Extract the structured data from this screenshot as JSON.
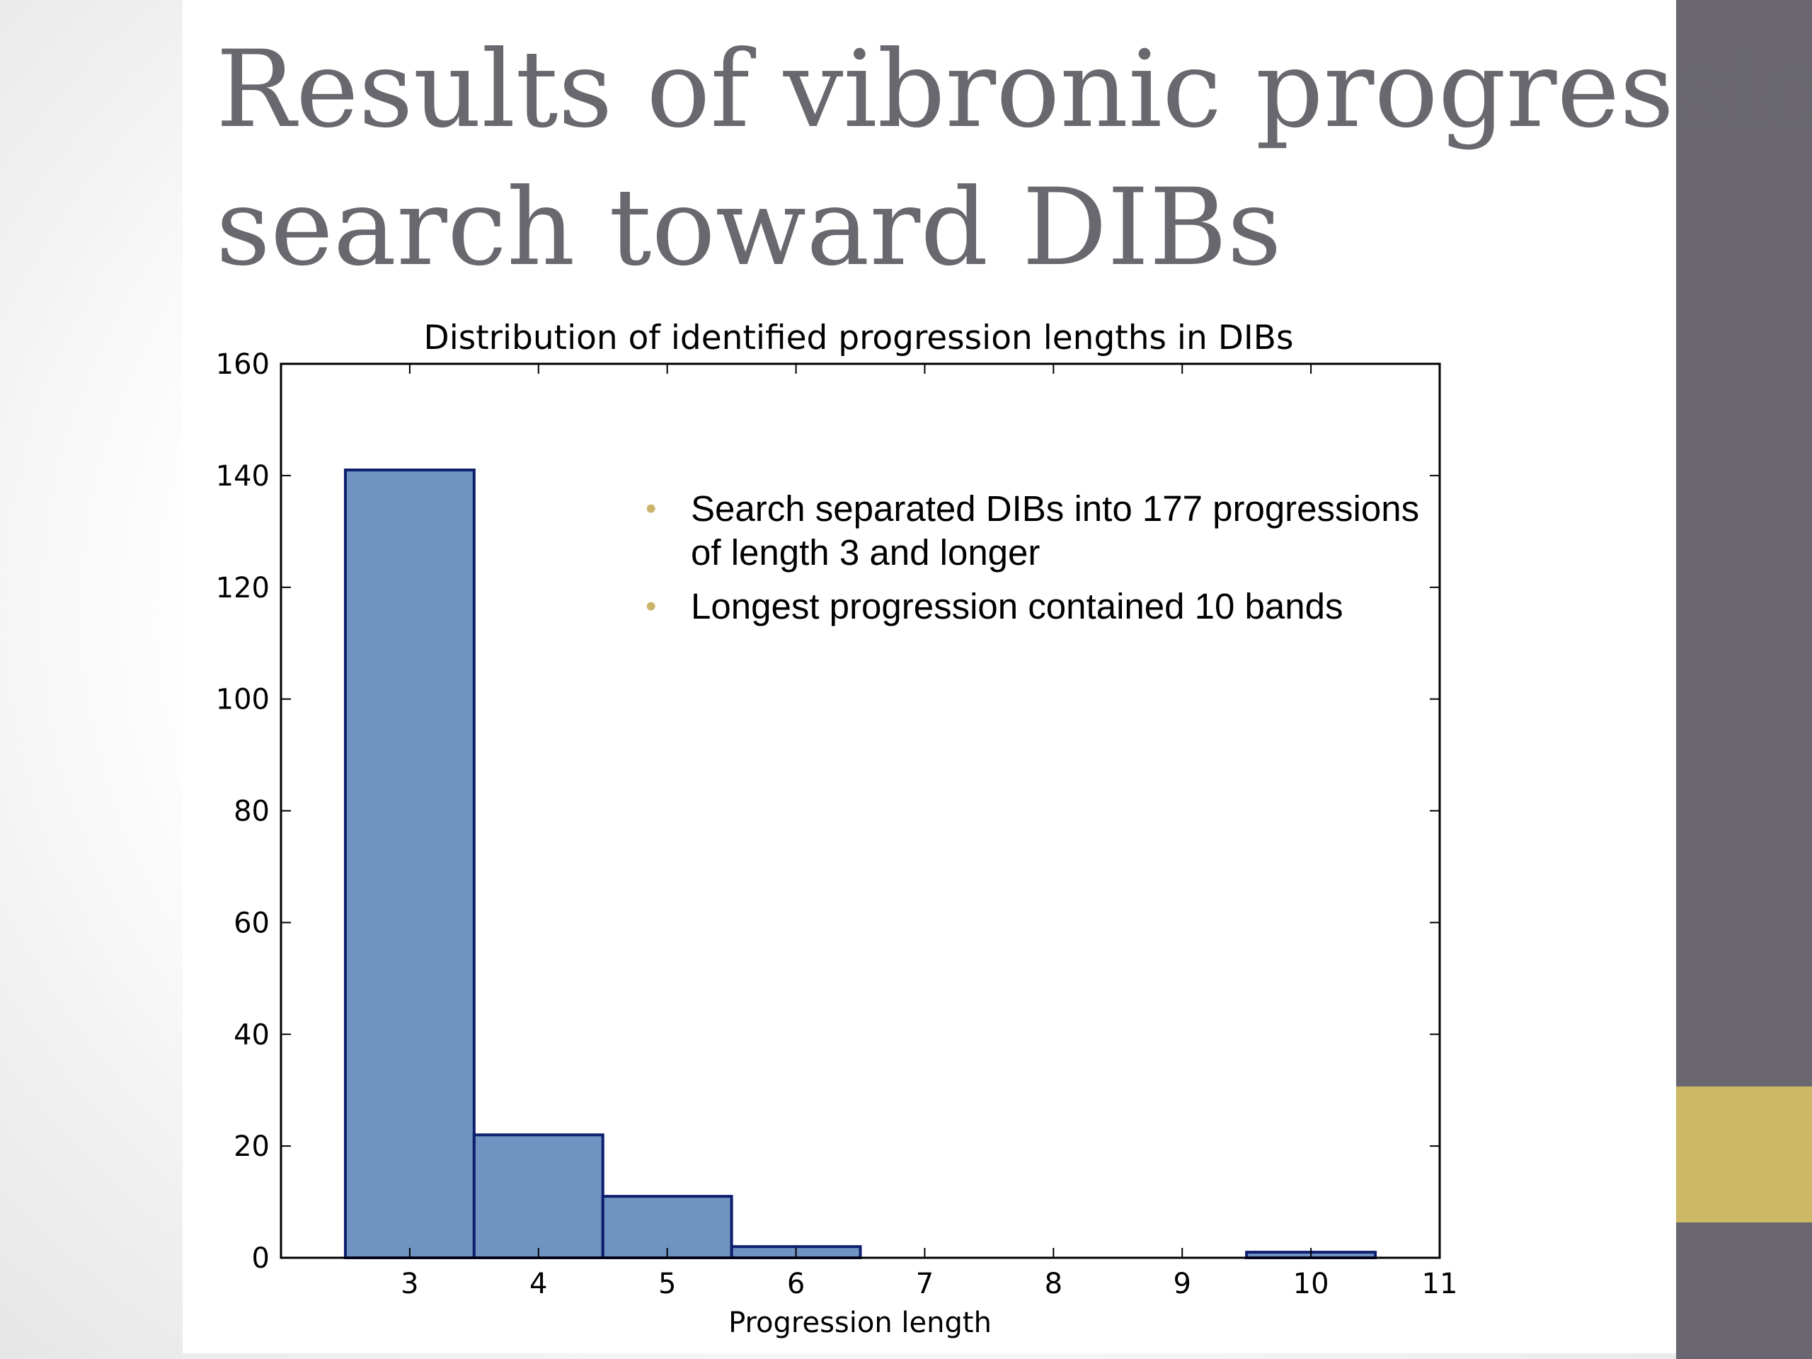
{
  "slide": {
    "title_lines": [
      "Results of vibronic progression",
      "search toward DIBs"
    ],
    "accent_colors": {
      "sidebar": "#6a6770",
      "highlight": "#cdb866",
      "bullet": "#c9b46a"
    },
    "bullets": [
      "Search separated DIBs into 177 progressions of length 3 and longer",
      "Longest progression contained 10 bands"
    ]
  },
  "chart_data": {
    "type": "bar",
    "title": "Distribution of identified progression lengths in DIBs",
    "xlabel": "Progression length",
    "ylabel": "",
    "categories": [
      3,
      4,
      5,
      6,
      7,
      8,
      9,
      10
    ],
    "values": [
      141,
      22,
      11,
      2,
      0,
      0,
      0,
      1
    ],
    "bar_width": 1,
    "xlim": [
      2,
      11
    ],
    "ylim": [
      0,
      160
    ],
    "xticks": [
      3,
      4,
      5,
      6,
      7,
      8,
      9,
      10,
      11
    ],
    "yticks": [
      0,
      20,
      40,
      60,
      80,
      100,
      120,
      140,
      160
    ],
    "bar_color": "#7094c1",
    "edge_color": "#0d1f6e",
    "grid": false,
    "legend": "none"
  }
}
